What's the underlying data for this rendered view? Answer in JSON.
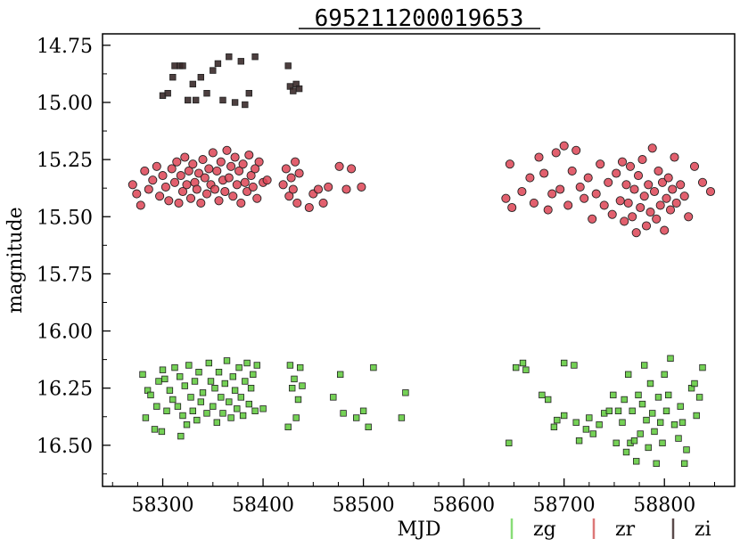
{
  "chart_data": {
    "type": "scatter",
    "title": "695211200019653",
    "xlabel": "MJD",
    "ylabel": "magnitude",
    "xlim": [
      58240,
      58870
    ],
    "ylim": [
      16.68,
      14.7
    ],
    "y_inverted": true,
    "grid": false,
    "legend_placement": "bottom-right, outside plot",
    "x_ticks": [
      "58300",
      "58400",
      "58500",
      "58600",
      "58700",
      "58800"
    ],
    "y_ticks": [
      "14.75",
      "15.00",
      "15.25",
      "15.50",
      "15.75",
      "16.00",
      "16.25",
      "16.50"
    ],
    "series": [
      {
        "name": "zg",
        "color": "#66cc44",
        "legend_color": "#88dd77",
        "marker": "square",
        "points": [
          [
            58280,
            16.19
          ],
          [
            58283,
            16.38
          ],
          [
            58285,
            16.26
          ],
          [
            58288,
            16.28
          ],
          [
            58292,
            16.43
          ],
          [
            58294,
            16.33
          ],
          [
            58296,
            16.22
          ],
          [
            58299,
            16.44
          ],
          [
            58300,
            16.17
          ],
          [
            58302,
            16.21
          ],
          [
            58304,
            16.35
          ],
          [
            58307,
            16.26
          ],
          [
            58310,
            16.3
          ],
          [
            58312,
            16.16
          ],
          [
            58315,
            16.33
          ],
          [
            58317,
            16.2
          ],
          [
            58318,
            16.46
          ],
          [
            58320,
            16.37
          ],
          [
            58322,
            16.24
          ],
          [
            58324,
            16.41
          ],
          [
            58326,
            16.15
          ],
          [
            58328,
            16.29
          ],
          [
            58330,
            16.35
          ],
          [
            58332,
            16.22
          ],
          [
            58334,
            16.39
          ],
          [
            58336,
            16.18
          ],
          [
            58338,
            16.31
          ],
          [
            58340,
            16.27
          ],
          [
            58344,
            16.36
          ],
          [
            58346,
            16.14
          ],
          [
            58348,
            16.22
          ],
          [
            58350,
            16.33
          ],
          [
            58352,
            16.25
          ],
          [
            58354,
            16.4
          ],
          [
            58356,
            16.18
          ],
          [
            58358,
            16.29
          ],
          [
            58360,
            16.36
          ],
          [
            58362,
            16.23
          ],
          [
            58364,
            16.13
          ],
          [
            58366,
            16.31
          ],
          [
            58368,
            16.38
          ],
          [
            58370,
            16.2
          ],
          [
            58372,
            16.26
          ],
          [
            58374,
            16.34
          ],
          [
            58376,
            16.16
          ],
          [
            58378,
            16.29
          ],
          [
            58380,
            16.37
          ],
          [
            58382,
            16.22
          ],
          [
            58384,
            16.14
          ],
          [
            58386,
            16.32
          ],
          [
            58388,
            16.25
          ],
          [
            58390,
            16.19
          ],
          [
            58392,
            16.35
          ],
          [
            58394,
            16.15
          ],
          [
            58400,
            16.34
          ],
          [
            58425,
            16.42
          ],
          [
            58427,
            16.15
          ],
          [
            58429,
            16.25
          ],
          [
            58431,
            16.21
          ],
          [
            58433,
            16.38
          ],
          [
            58435,
            16.3
          ],
          [
            58437,
            16.16
          ],
          [
            58439,
            16.24
          ],
          [
            58470,
            16.29
          ],
          [
            58477,
            16.19
          ],
          [
            58480,
            16.36
          ],
          [
            58493,
            16.38
          ],
          [
            58500,
            16.35
          ],
          [
            58505,
            16.42
          ],
          [
            58510,
            16.16
          ],
          [
            58538,
            16.38
          ],
          [
            58542,
            16.27
          ],
          [
            58645,
            16.49
          ],
          [
            58652,
            16.16
          ],
          [
            58659,
            16.14
          ],
          [
            58662,
            16.17
          ],
          [
            58678,
            16.28
          ],
          [
            58684,
            16.3
          ],
          [
            58690,
            16.42
          ],
          [
            58693,
            16.39
          ],
          [
            58700,
            16.37
          ],
          [
            58700,
            16.14
          ],
          [
            58710,
            16.15
          ],
          [
            58712,
            16.4
          ],
          [
            58715,
            16.48
          ],
          [
            58722,
            16.43
          ],
          [
            58725,
            16.38
          ],
          [
            58729,
            16.45
          ],
          [
            58735,
            16.41
          ],
          [
            58740,
            16.36
          ],
          [
            58745,
            16.35
          ],
          [
            58749,
            16.28
          ],
          [
            58752,
            16.49
          ],
          [
            58754,
            16.35
          ],
          [
            58758,
            16.4
          ],
          [
            58760,
            16.3
          ],
          [
            58762,
            16.53
          ],
          [
            58764,
            16.19
          ],
          [
            58766,
            16.49
          ],
          [
            58768,
            16.35
          ],
          [
            58770,
            16.48
          ],
          [
            58772,
            16.57
          ],
          [
            58774,
            16.28
          ],
          [
            58776,
            16.45
          ],
          [
            58778,
            16.32
          ],
          [
            58780,
            16.15
          ],
          [
            58782,
            16.39
          ],
          [
            58784,
            16.51
          ],
          [
            58786,
            16.23
          ],
          [
            58788,
            16.36
          ],
          [
            58790,
            16.44
          ],
          [
            58792,
            16.58
          ],
          [
            58794,
            16.29
          ],
          [
            58796,
            16.4
          ],
          [
            58798,
            16.49
          ],
          [
            58800,
            16.19
          ],
          [
            58802,
            16.35
          ],
          [
            58804,
            16.28
          ],
          [
            58806,
            16.12
          ],
          [
            58810,
            16.41
          ],
          [
            58814,
            16.47
          ],
          [
            58816,
            16.33
          ],
          [
            58818,
            16.4
          ],
          [
            58820,
            16.58
          ],
          [
            58822,
            16.52
          ],
          [
            58827,
            16.25
          ],
          [
            58830,
            16.23
          ],
          [
            58832,
            16.37
          ],
          [
            58835,
            16.29
          ],
          [
            58838,
            16.16
          ]
        ]
      },
      {
        "name": "zr",
        "color": "#dd4455",
        "legend_color": "#dd7777",
        "marker": "circle",
        "points": [
          [
            58270,
            15.36
          ],
          [
            58274,
            15.4
          ],
          [
            58278,
            15.45
          ],
          [
            58282,
            15.3
          ],
          [
            58286,
            15.38
          ],
          [
            58290,
            15.34
          ],
          [
            58294,
            15.28
          ],
          [
            58297,
            15.41
          ],
          [
            58300,
            15.32
          ],
          [
            58303,
            15.37
          ],
          [
            58306,
            15.43
          ],
          [
            58309,
            15.29
          ],
          [
            58312,
            15.35
          ],
          [
            58314,
            15.26
          ],
          [
            58316,
            15.44
          ],
          [
            58318,
            15.32
          ],
          [
            58320,
            15.39
          ],
          [
            58322,
            15.24
          ],
          [
            58324,
            15.36
          ],
          [
            58326,
            15.3
          ],
          [
            58328,
            15.42
          ],
          [
            58330,
            15.27
          ],
          [
            58332,
            15.35
          ],
          [
            58334,
            15.38
          ],
          [
            58336,
            15.31
          ],
          [
            58338,
            15.44
          ],
          [
            58340,
            15.25
          ],
          [
            58342,
            15.33
          ],
          [
            58344,
            15.4
          ],
          [
            58346,
            15.29
          ],
          [
            58348,
            15.36
          ],
          [
            58350,
            15.22
          ],
          [
            58352,
            15.38
          ],
          [
            58354,
            15.3
          ],
          [
            58356,
            15.43
          ],
          [
            58358,
            15.26
          ],
          [
            58360,
            15.34
          ],
          [
            58362,
            15.39
          ],
          [
            58364,
            15.21
          ],
          [
            58366,
            15.33
          ],
          [
            58368,
            15.28
          ],
          [
            58370,
            15.41
          ],
          [
            58372,
            15.24
          ],
          [
            58374,
            15.36
          ],
          [
            58376,
            15.3
          ],
          [
            58378,
            15.44
          ],
          [
            58380,
            15.27
          ],
          [
            58382,
            15.35
          ],
          [
            58384,
            15.39
          ],
          [
            58386,
            15.23
          ],
          [
            58388,
            15.32
          ],
          [
            58390,
            15.37
          ],
          [
            58392,
            15.29
          ],
          [
            58394,
            15.42
          ],
          [
            58396,
            15.26
          ],
          [
            58400,
            15.35
          ],
          [
            58404,
            15.34
          ],
          [
            58420,
            15.36
          ],
          [
            58423,
            15.29
          ],
          [
            58426,
            15.41
          ],
          [
            58428,
            15.33
          ],
          [
            58430,
            15.38
          ],
          [
            58432,
            15.26
          ],
          [
            58434,
            15.44
          ],
          [
            58436,
            15.31
          ],
          [
            58446,
            15.46
          ],
          [
            58450,
            15.4
          ],
          [
            58455,
            15.38
          ],
          [
            58460,
            15.44
          ],
          [
            58465,
            15.37
          ],
          [
            58476,
            15.28
          ],
          [
            58483,
            15.38
          ],
          [
            58488,
            15.29
          ],
          [
            58498,
            15.37
          ],
          [
            58642,
            15.42
          ],
          [
            58646,
            15.27
          ],
          [
            58648,
            15.46
          ],
          [
            58658,
            15.39
          ],
          [
            58666,
            15.33
          ],
          [
            58670,
            15.44
          ],
          [
            58675,
            15.24
          ],
          [
            58680,
            15.31
          ],
          [
            58684,
            15.47
          ],
          [
            58688,
            15.4
          ],
          [
            58692,
            15.22
          ],
          [
            58696,
            15.38
          ],
          [
            58700,
            15.19
          ],
          [
            58704,
            15.45
          ],
          [
            58708,
            15.3
          ],
          [
            58712,
            15.21
          ],
          [
            58716,
            15.37
          ],
          [
            58720,
            15.42
          ],
          [
            58724,
            15.33
          ],
          [
            58728,
            15.51
          ],
          [
            58732,
            15.4
          ],
          [
            58736,
            15.27
          ],
          [
            58740,
            15.45
          ],
          [
            58744,
            15.35
          ],
          [
            58748,
            15.49
          ],
          [
            58752,
            15.31
          ],
          [
            58756,
            15.43
          ],
          [
            58758,
            15.26
          ],
          [
            58760,
            15.52
          ],
          [
            58762,
            15.36
          ],
          [
            58764,
            15.44
          ],
          [
            58766,
            15.28
          ],
          [
            58768,
            15.5
          ],
          [
            58770,
            15.38
          ],
          [
            58772,
            15.57
          ],
          [
            58774,
            15.32
          ],
          [
            58776,
            15.46
          ],
          [
            58778,
            15.25
          ],
          [
            58780,
            15.41
          ],
          [
            58782,
            15.54
          ],
          [
            58784,
            15.36
          ],
          [
            58786,
            15.48
          ],
          [
            58788,
            15.2
          ],
          [
            58790,
            15.39
          ],
          [
            58792,
            15.51
          ],
          [
            58794,
            15.3
          ],
          [
            58796,
            15.45
          ],
          [
            58798,
            15.35
          ],
          [
            58800,
            15.56
          ],
          [
            58802,
            15.42
          ],
          [
            58804,
            15.33
          ],
          [
            58806,
            15.47
          ],
          [
            58808,
            15.38
          ],
          [
            58810,
            15.24
          ],
          [
            58812,
            15.44
          ],
          [
            58816,
            15.36
          ],
          [
            58820,
            15.41
          ],
          [
            58824,
            15.5
          ],
          [
            58830,
            15.28
          ],
          [
            58838,
            15.35
          ],
          [
            58846,
            15.39
          ]
        ]
      },
      {
        "name": "zi",
        "color": "#3a2a2a",
        "legend_color": "#5a4a4a",
        "marker": "square",
        "points": [
          [
            58300,
            14.97
          ],
          [
            58305,
            14.96
          ],
          [
            58310,
            14.89
          ],
          [
            58312,
            14.84
          ],
          [
            58317,
            14.84
          ],
          [
            58320,
            14.84
          ],
          [
            58325,
            14.99
          ],
          [
            58330,
            14.92
          ],
          [
            58333,
            14.99
          ],
          [
            58338,
            14.89
          ],
          [
            58344,
            14.96
          ],
          [
            58350,
            14.86
          ],
          [
            58355,
            14.83
          ],
          [
            58360,
            14.99
          ],
          [
            58366,
            14.8
          ],
          [
            58372,
            15.0
          ],
          [
            58378,
            14.82
          ],
          [
            58382,
            15.01
          ],
          [
            58386,
            14.96
          ],
          [
            58392,
            14.8
          ],
          [
            58425,
            14.84
          ],
          [
            58427,
            14.93
          ],
          [
            58430,
            14.95
          ],
          [
            58433,
            14.92
          ],
          [
            58436,
            14.94
          ]
        ]
      }
    ]
  }
}
